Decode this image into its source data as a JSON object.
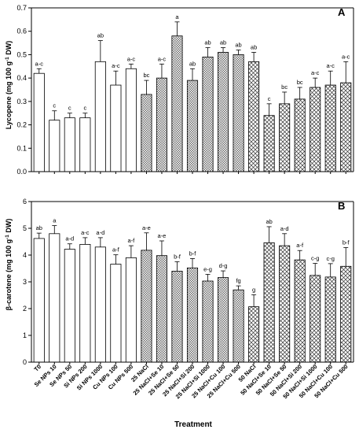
{
  "chart_data": [
    {
      "type": "bar",
      "panel": "A",
      "ylabel_parts": [
        "Lycopene (mg 100 g",
        "-1",
        " DW)"
      ],
      "ylim": [
        0,
        0.7
      ],
      "yticks": [
        0.0,
        0.1,
        0.2,
        0.3,
        0.4,
        0.5,
        0.6,
        0.7
      ],
      "ytick_labels": [
        "0.0",
        "0.1",
        "0.2",
        "0.3",
        "0.4",
        "0.5",
        "0.6",
        "0.7"
      ],
      "values": [
        0.42,
        0.22,
        0.23,
        0.23,
        0.47,
        0.37,
        0.44,
        0.33,
        0.4,
        0.58,
        0.39,
        0.49,
        0.51,
        0.5,
        0.47,
        0.24,
        0.29,
        0.31,
        0.36,
        0.37,
        0.38
      ],
      "errors": [
        0.02,
        0.04,
        0.02,
        0.02,
        0.09,
        0.06,
        0.02,
        0.06,
        0.06,
        0.06,
        0.05,
        0.04,
        0.02,
        0.02,
        0.04,
        0.05,
        0.05,
        0.05,
        0.04,
        0.06,
        0.09
      ],
      "labels": [
        "a-c",
        "c",
        "c",
        "c",
        "ab",
        "a-c",
        "a-c",
        "bc",
        "a-c",
        "a",
        "ab",
        "ab",
        "ab",
        "ab",
        "ab",
        "c",
        "bc",
        "bc",
        "a-c",
        "a-c",
        "a-c"
      ]
    },
    {
      "type": "bar",
      "panel": "B",
      "ylabel_parts": [
        "β-carotene (mg 100 g",
        "-1",
        " DW)"
      ],
      "ylim": [
        0,
        6
      ],
      "yticks": [
        0,
        1,
        2,
        3,
        4,
        5,
        6
      ],
      "ytick_labels": [
        "0",
        "1",
        "2",
        "3",
        "4",
        "5",
        "6"
      ],
      "values": [
        4.62,
        4.8,
        4.22,
        4.4,
        4.3,
        3.66,
        3.9,
        4.18,
        3.98,
        3.4,
        3.52,
        3.03,
        3.16,
        2.7,
        2.07,
        4.46,
        4.35,
        3.82,
        3.24,
        3.18,
        3.58
      ],
      "errors": [
        0.2,
        0.3,
        0.2,
        0.25,
        0.35,
        0.35,
        0.45,
        0.65,
        0.55,
        0.35,
        0.35,
        0.25,
        0.25,
        0.15,
        0.45,
        0.6,
        0.45,
        0.35,
        0.45,
        0.5,
        0.7
      ],
      "labels": [
        "ab",
        "a",
        "a-d",
        "a-c",
        "a-d",
        "a-f",
        "a-f",
        "a-e",
        "a-e",
        "b-f",
        "b-f",
        "e-g",
        "d-g",
        "fg",
        "g",
        "ab",
        "a-d",
        "a-f",
        "c-g",
        "c-g",
        "b-f"
      ]
    }
  ],
  "categories": [
    "T0",
    "Se NPs 10",
    "Se NPs 50",
    "Si NPs 200",
    "Si NPs 1000",
    "Cu NPs 100",
    "Cu NPs 500",
    "25 NaCl",
    "25 NaCl+Se 10",
    "25 NaCl+Se 50",
    "25 NaCl+Si 200",
    "25 NaCl+Si 1000",
    "25 NaCl+Cu 100",
    "25 NaCl+Cu 500",
    "50 NaCl",
    "50 NaCl+Se 10",
    "50 NaCl+Se 50",
    "50 NaCl+Si 200",
    "50 NaCl+Si 1000",
    "50 NaCl+Cu 100",
    "50 NaCl+Cu 500"
  ],
  "fill_groups": [
    "white",
    "white",
    "white",
    "white",
    "white",
    "white",
    "white",
    "dots",
    "dots",
    "dots",
    "dots",
    "dots",
    "dots",
    "dots",
    "cross",
    "cross",
    "cross",
    "cross",
    "cross",
    "cross",
    "cross"
  ],
  "xlabel": "Treatment"
}
